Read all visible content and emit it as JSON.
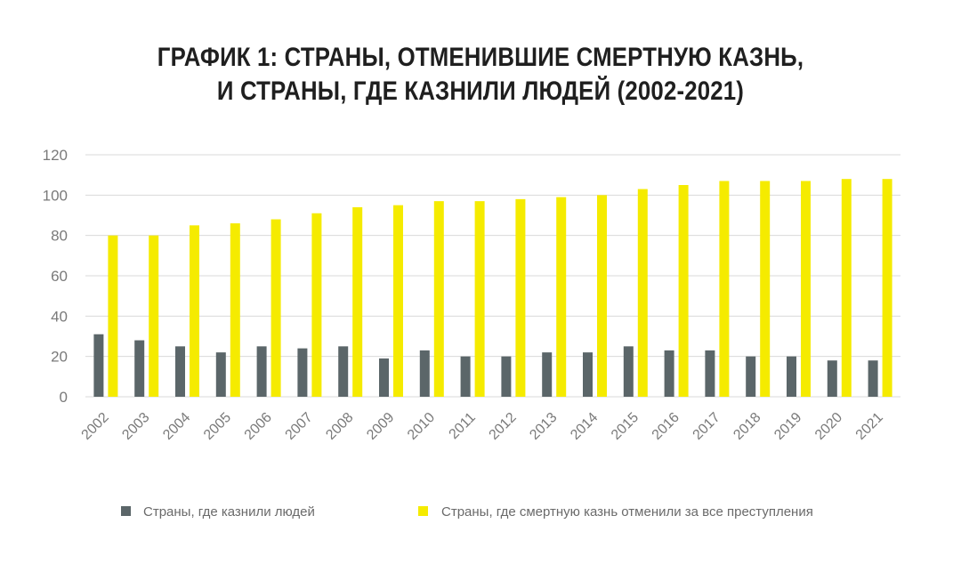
{
  "chart_data": {
    "type": "bar",
    "title_lines": [
      "ГРАФИК 1: СТРАНЫ, ОТМЕНИВШИЕ СМЕРТНУЮ КАЗНЬ,",
      "И СТРАНЫ, ГДЕ КАЗНИЛИ ЛЮДЕЙ (2002-2021)"
    ],
    "categories": [
      "2002",
      "2003",
      "2004",
      "2005",
      "2006",
      "2007",
      "2008",
      "2009",
      "2010",
      "2011",
      "2012",
      "2013",
      "2014",
      "2015",
      "2016",
      "2017",
      "2018",
      "2019",
      "2020",
      "2021"
    ],
    "series": [
      {
        "name": "Страны, где казнили людей",
        "color": "#5b6669",
        "values": [
          31,
          28,
          25,
          22,
          25,
          24,
          25,
          19,
          23,
          20,
          20,
          22,
          22,
          25,
          23,
          23,
          20,
          20,
          18,
          18
        ]
      },
      {
        "name": "Страны, где смертную казнь отменили за все преступления",
        "color": "#f5eb00",
        "values": [
          80,
          80,
          85,
          86,
          88,
          91,
          94,
          95,
          97,
          97,
          98,
          99,
          100,
          103,
          105,
          107,
          107,
          107,
          108,
          108
        ]
      }
    ],
    "y_ticks": [
      "0",
      "20",
      "40",
      "60",
      "80",
      "100",
      "120"
    ],
    "ylim": [
      0,
      120
    ],
    "grid": true,
    "legend_position": "bottom"
  }
}
